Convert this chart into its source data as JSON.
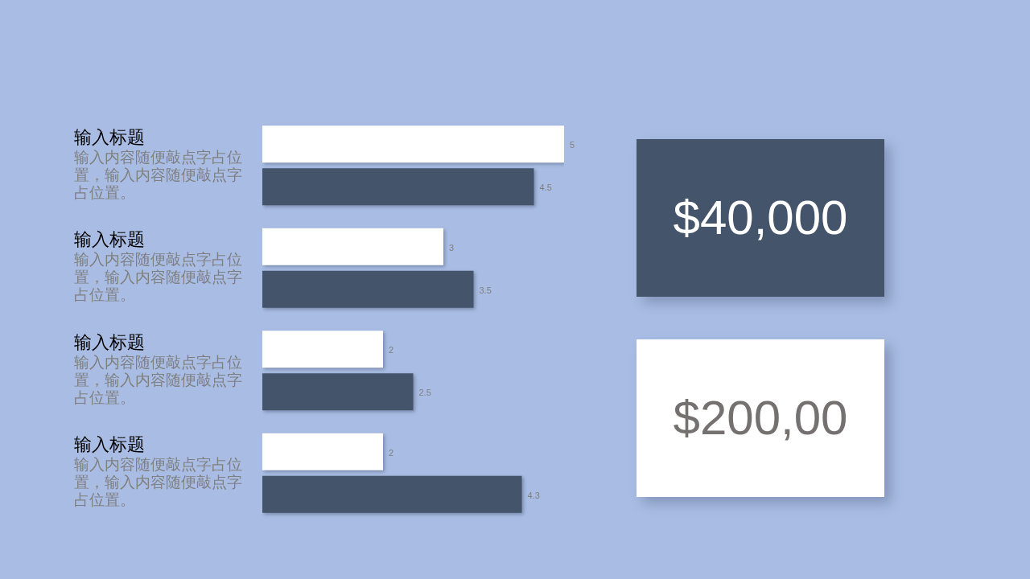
{
  "chart_data": [
    {
      "type": "bar",
      "orientation": "horizontal",
      "tick_labels": "y",
      "data_labels": true,
      "categories": [
        "输入标题",
        "输入标题",
        "输入标题",
        "输入标题"
      ],
      "annotations": [
        "输入内容随便敲点字占位置，输入内容随便敲点字占位置。",
        "输入内容随便敲点字占位置，输入内容随便敲点字占位置。",
        "输入内容随便敲点字占位置，输入内容随便敲点字占位置。",
        "输入内容随便敲点字占位置，输入内容随便敲点字占位置。"
      ],
      "series": [
        {
          "color": "#ffffff",
          "values": [
            5,
            3,
            2,
            2
          ]
        },
        {
          "color": "#44546a",
          "values": [
            4.5,
            3.5,
            2.5,
            4.3
          ]
        }
      ]
    },
    {
      "type": "other",
      "annotations": [
        "$40,000",
        "$200,00"
      ]
    }
  ]
}
